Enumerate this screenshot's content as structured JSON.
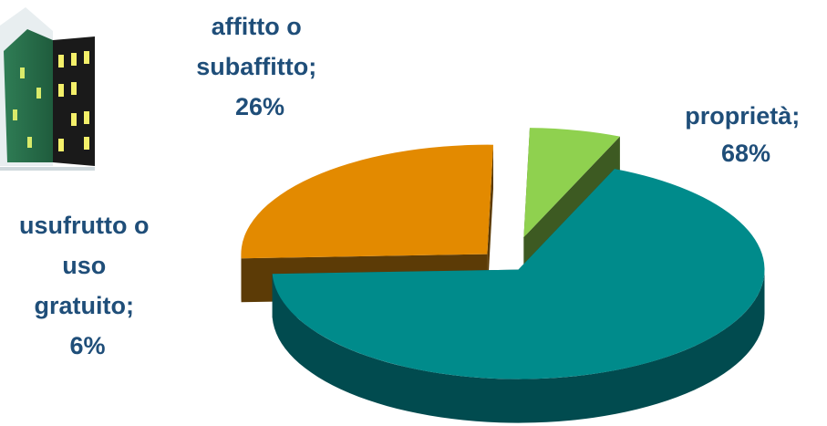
{
  "chart_data": {
    "type": "pie",
    "style": "3d-exploded",
    "slices": [
      {
        "label_lines": [
          "proprietà;",
          "68%"
        ],
        "value": 68,
        "color": "#008b8b",
        "side_color": "#014b4f"
      },
      {
        "label_lines": [
          "affitto o",
          "subaffitto;",
          "26%"
        ],
        "value": 26,
        "color": "#e38a00",
        "side_color": "#5c3b06"
      },
      {
        "label_lines": [
          "usufrutto o",
          "uso",
          "gratuito;",
          "6%"
        ],
        "value": 6,
        "color": "#8fd14f",
        "side_color": "#3d5a22"
      }
    ],
    "decorations": [
      "building-icon"
    ]
  }
}
